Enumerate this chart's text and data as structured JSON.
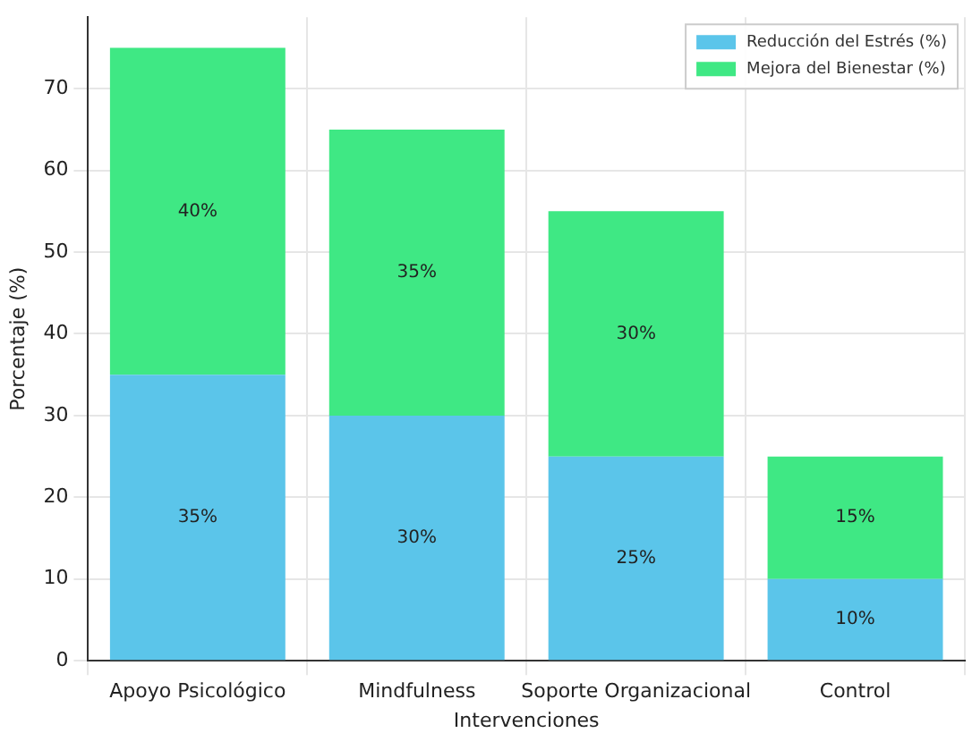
{
  "chart_data": {
    "type": "bar",
    "xlabel": "Intervenciones",
    "ylabel": "Porcentaje (%)",
    "categories": [
      "Apoyo Psicológico",
      "Mindfulness",
      "Soporte Organizacional",
      "Control"
    ],
    "stacked": true,
    "series": [
      {
        "name": "Reducción del Estrés (%)",
        "color": "#5bc5ea",
        "values": [
          35,
          30,
          25,
          10
        ],
        "value_labels": [
          "35%",
          "30%",
          "25%",
          "10%"
        ]
      },
      {
        "name": "Mejora del Bienestar (%)",
        "color": "#3fe884",
        "values": [
          40,
          35,
          30,
          15
        ],
        "value_labels": [
          "40%",
          "35%",
          "30%",
          "15%"
        ]
      }
    ],
    "ylim": [
      0,
      78.75
    ],
    "yticks": [
      0,
      10,
      20,
      30,
      40,
      50,
      60,
      70
    ],
    "grid": true,
    "legend": "top right"
  }
}
